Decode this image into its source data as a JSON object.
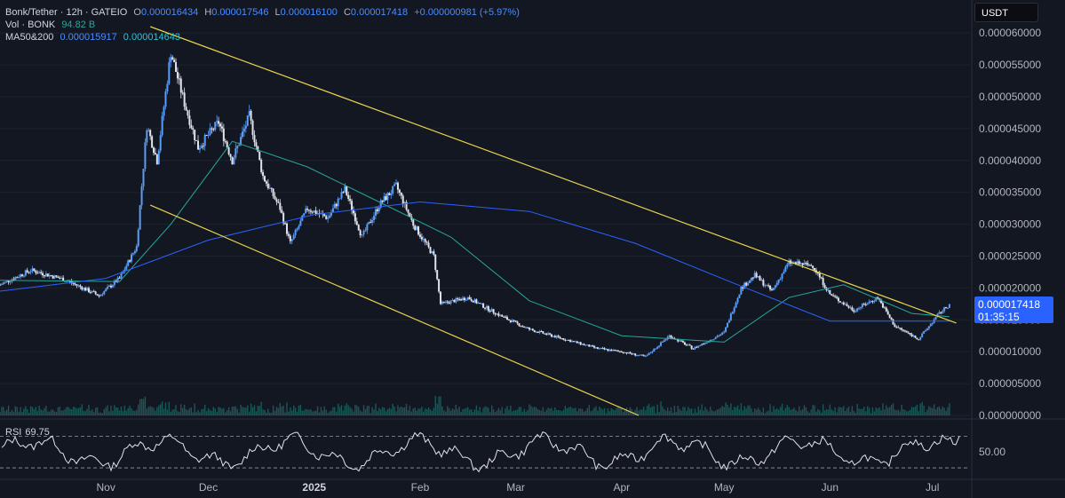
{
  "header": {
    "symbol": "Bonk/Tether · 12h · GATEIO",
    "open_label": "O",
    "open": "0.000016434",
    "high_label": "H",
    "high": "0.000017546",
    "low_label": "L",
    "low": "0.000016100",
    "close_label": "C",
    "close": "0.000017418",
    "change": "+0.000000981 (+5.97%)",
    "vol_label": "Vol · BONK",
    "vol_value": "94.82 B",
    "ma_label": "MA50&200",
    "ma50": "0.000015917",
    "ma200": "0.000014643"
  },
  "currency_button": "USDT",
  "price_tag": {
    "price": "0.000017418",
    "countdown": "01:35:15"
  },
  "rsi": {
    "label": "RSI",
    "value": "69.75",
    "level_label": "50.00"
  },
  "colors": {
    "background": "#131722",
    "up": "#5b9cf6",
    "down": "#e0e3eb",
    "ma50": "#26a69a",
    "ma200": "#2962ff",
    "trendline": "#e8d44d",
    "volume": "#26a69a",
    "rsi": "#e0e3eb"
  },
  "chart_data": {
    "type": "candlestick",
    "timeframe": "12h",
    "y_ticks": [
      "0.000060000",
      "0.000055000",
      "0.000050000",
      "0.000045000",
      "0.000040000",
      "0.000035000",
      "0.000030000",
      "0.000025000",
      "0.000020000",
      "0.000015000",
      "0.000010000",
      "0.000005000",
      "0.000000000"
    ],
    "ylim": [
      0,
      6.1e-05
    ],
    "x_ticks": [
      "Nov",
      "Dec",
      "2025",
      "Feb",
      "Mar",
      "Apr",
      "May",
      "Jun",
      "Jul"
    ],
    "price_path": [
      [
        "2024-10-01",
        2.05e-05
      ],
      [
        "2024-10-10",
        2.28e-05
      ],
      [
        "2024-10-20",
        2.13e-05
      ],
      [
        "2024-10-30",
        1.88e-05
      ],
      [
        "2024-11-05",
        2.15e-05
      ],
      [
        "2024-11-10",
        2.65e-05
      ],
      [
        "2024-11-13",
        4.55e-05
      ],
      [
        "2024-11-16",
        4e-05
      ],
      [
        "2024-11-20",
        5.7e-05
      ],
      [
        "2024-11-24",
        4.9e-05
      ],
      [
        "2024-11-28",
        4.2e-05
      ],
      [
        "2024-12-04",
        4.6e-05
      ],
      [
        "2024-12-08",
        4e-05
      ],
      [
        "2024-12-13",
        4.7e-05
      ],
      [
        "2024-12-17",
        3.75e-05
      ],
      [
        "2024-12-22",
        3.25e-05
      ],
      [
        "2024-12-25",
        2.7e-05
      ],
      [
        "2024-12-30",
        3.25e-05
      ],
      [
        "2025-01-05",
        3.1e-05
      ],
      [
        "2025-01-10",
        3.55e-05
      ],
      [
        "2025-01-15",
        2.8e-05
      ],
      [
        "2025-01-20",
        3.3e-05
      ],
      [
        "2025-01-25",
        3.6e-05
      ],
      [
        "2025-01-30",
        3e-05
      ],
      [
        "2025-02-05",
        2.5e-05
      ],
      [
        "2025-02-07",
        1.75e-05
      ],
      [
        "2025-02-15",
        1.85e-05
      ],
      [
        "2025-02-25",
        1.55e-05
      ],
      [
        "2025-03-05",
        1.35e-05
      ],
      [
        "2025-03-15",
        1.2e-05
      ],
      [
        "2025-03-25",
        1.05e-05
      ],
      [
        "2025-04-01",
        1e-05
      ],
      [
        "2025-04-08",
        9.2e-06
      ],
      [
        "2025-04-15",
        1.25e-05
      ],
      [
        "2025-04-22",
        1.05e-05
      ],
      [
        "2025-05-01",
        1.3e-05
      ],
      [
        "2025-05-06",
        2e-05
      ],
      [
        "2025-05-10",
        2.2e-05
      ],
      [
        "2025-05-15",
        1.95e-05
      ],
      [
        "2025-05-20",
        2.4e-05
      ],
      [
        "2025-05-27",
        2.35e-05
      ],
      [
        "2025-06-01",
        1.9e-05
      ],
      [
        "2025-06-08",
        1.65e-05
      ],
      [
        "2025-06-15",
        1.85e-05
      ],
      [
        "2025-06-20",
        1.4e-05
      ],
      [
        "2025-06-27",
        1.2e-05
      ],
      [
        "2025-07-03",
        1.6e-05
      ],
      [
        "2025-07-06",
        1.74e-05
      ]
    ],
    "ma50_path": [
      [
        "2024-10-01",
        2.12e-05
      ],
      [
        "2024-11-05",
        2.1e-05
      ],
      [
        "2024-11-20",
        3e-05
      ],
      [
        "2024-12-08",
        4.3e-05
      ],
      [
        "2024-12-30",
        3.9e-05
      ],
      [
        "2025-01-20",
        3.35e-05
      ],
      [
        "2025-02-10",
        2.8e-05
      ],
      [
        "2025-03-05",
        1.8e-05
      ],
      [
        "2025-04-01",
        1.25e-05
      ],
      [
        "2025-05-01",
        1.15e-05
      ],
      [
        "2025-05-20",
        1.85e-05
      ],
      [
        "2025-06-05",
        2.05e-05
      ],
      [
        "2025-06-25",
        1.6e-05
      ],
      [
        "2025-07-06",
        1.55e-05
      ]
    ],
    "ma200_path": [
      [
        "2024-10-01",
        1.95e-05
      ],
      [
        "2024-11-01",
        2.15e-05
      ],
      [
        "2024-12-01",
        2.75e-05
      ],
      [
        "2025-01-01",
        3.15e-05
      ],
      [
        "2025-02-01",
        3.35e-05
      ],
      [
        "2025-03-05",
        3.2e-05
      ],
      [
        "2025-04-05",
        2.7e-05
      ],
      [
        "2025-05-05",
        2.05e-05
      ],
      [
        "2025-06-01",
        1.48e-05
      ],
      [
        "2025-07-06",
        1.48e-05
      ]
    ],
    "trendlines": [
      {
        "name": "upper",
        "from": [
          "2024-11-14",
          6.1e-05
        ],
        "to": [
          "2025-07-08",
          1.45e-05
        ]
      },
      {
        "name": "lower",
        "from": [
          "2024-11-14",
          3.3e-05
        ],
        "to": [
          "2025-04-06",
          0.0
        ]
      }
    ],
    "rsi_levels": [
      70,
      30
    ],
    "rsi_last": 69.75
  }
}
